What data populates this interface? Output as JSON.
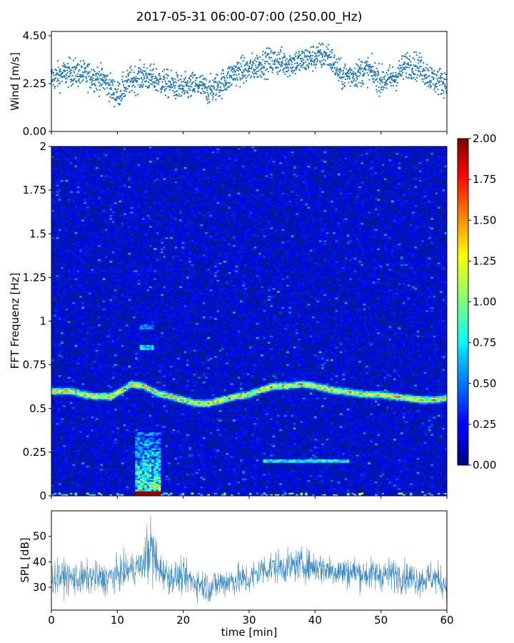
{
  "figure": {
    "title": "2017-05-31 06:00-07:00 (250.00_Hz)"
  },
  "chart_data": [
    {
      "type": "scatter",
      "name": "wind",
      "ylabel": "Wind [m/s]",
      "xlim": [
        0,
        60
      ],
      "ylim": [
        0,
        4.7
      ],
      "yticks": [
        "0.00",
        "2.25",
        "4.50"
      ],
      "marker_color": "#1f77b4",
      "trend": {
        "t": [
          0,
          3,
          6,
          8,
          10,
          12,
          14,
          16,
          18,
          20,
          22,
          24,
          26,
          28,
          30,
          32,
          34,
          36,
          38,
          40,
          42,
          44,
          46,
          48,
          50,
          52,
          54,
          56,
          58,
          60
        ],
        "v": [
          2.5,
          2.8,
          2.6,
          2.4,
          1.7,
          2.4,
          2.6,
          2.4,
          2.2,
          2.0,
          2.2,
          1.9,
          2.3,
          2.8,
          2.9,
          3.2,
          3.3,
          3.2,
          3.3,
          3.5,
          3.6,
          2.6,
          2.7,
          2.9,
          2.4,
          2.5,
          3.2,
          3.0,
          2.4,
          2.3
        ]
      }
    },
    {
      "type": "heatmap",
      "name": "spectrogram",
      "ylabel": "FFT Frequenz [Hz]",
      "xlim": [
        0,
        60
      ],
      "ylim": [
        0,
        2
      ],
      "yticks": [
        "0",
        "0.25",
        "0.5",
        "0.75",
        "1",
        "1.25",
        "1.5",
        "1.75",
        "2"
      ],
      "colorbar": {
        "min": 0,
        "max": 2,
        "ticks": [
          "0.00",
          "0.25",
          "0.50",
          "0.75",
          "1.00",
          "1.25",
          "1.50",
          "1.75",
          "2.00"
        ],
        "colormap": "jet"
      },
      "ridge": {
        "t": [
          0,
          3,
          5,
          7,
          9,
          11,
          12,
          14,
          16,
          18,
          20,
          22,
          24,
          26,
          28,
          30,
          32,
          34,
          36,
          38,
          40,
          42,
          44,
          46,
          48,
          50,
          52,
          54,
          56,
          58,
          60
        ],
        "f": [
          0.6,
          0.6,
          0.58,
          0.57,
          0.57,
          0.61,
          0.64,
          0.63,
          0.59,
          0.57,
          0.55,
          0.53,
          0.53,
          0.55,
          0.57,
          0.58,
          0.61,
          0.63,
          0.63,
          0.64,
          0.63,
          0.61,
          0.6,
          0.59,
          0.58,
          0.58,
          0.57,
          0.56,
          0.55,
          0.55,
          0.56
        ],
        "peak_level": 1.6
      },
      "burst": {
        "t_start": 12.6,
        "t_end": 16.6,
        "f_max": 0.36,
        "level": 1.2
      },
      "lines": [
        {
          "f": 0.2,
          "t_start": 32,
          "t_end": 45,
          "level": 0.9
        },
        {
          "f": 0.85,
          "t_start": 13.5,
          "t_end": 15.5,
          "level": 0.8
        },
        {
          "f": 0.97,
          "t_start": 13.5,
          "t_end": 15.5,
          "level": 0.6
        }
      ],
      "background_level": 0.12
    },
    {
      "type": "line",
      "name": "spl",
      "ylabel": "SPL [dB]",
      "xlabel": "time [min]",
      "xlim": [
        0,
        60
      ],
      "ylim": [
        21,
        60
      ],
      "xticks": [
        "0",
        "10",
        "20",
        "30",
        "40",
        "50",
        "60"
      ],
      "yticks": [
        "30",
        "40",
        "50"
      ],
      "line_color": "#1f77b4",
      "trend": {
        "t": [
          0,
          2,
          4,
          6,
          8,
          10,
          12,
          14,
          15,
          16,
          17,
          18,
          20,
          22,
          24,
          26,
          28,
          30,
          32,
          34,
          36,
          38,
          40,
          42,
          44,
          46,
          48,
          50,
          52,
          54,
          56,
          58,
          60
        ],
        "v": [
          34,
          34,
          33,
          34,
          33,
          35,
          37,
          39,
          46,
          38,
          36,
          34,
          34,
          32,
          30,
          32,
          33,
          33,
          37,
          38,
          38,
          39,
          38,
          37,
          36,
          36,
          35,
          35,
          35,
          34,
          33,
          34,
          31
        ]
      }
    }
  ]
}
